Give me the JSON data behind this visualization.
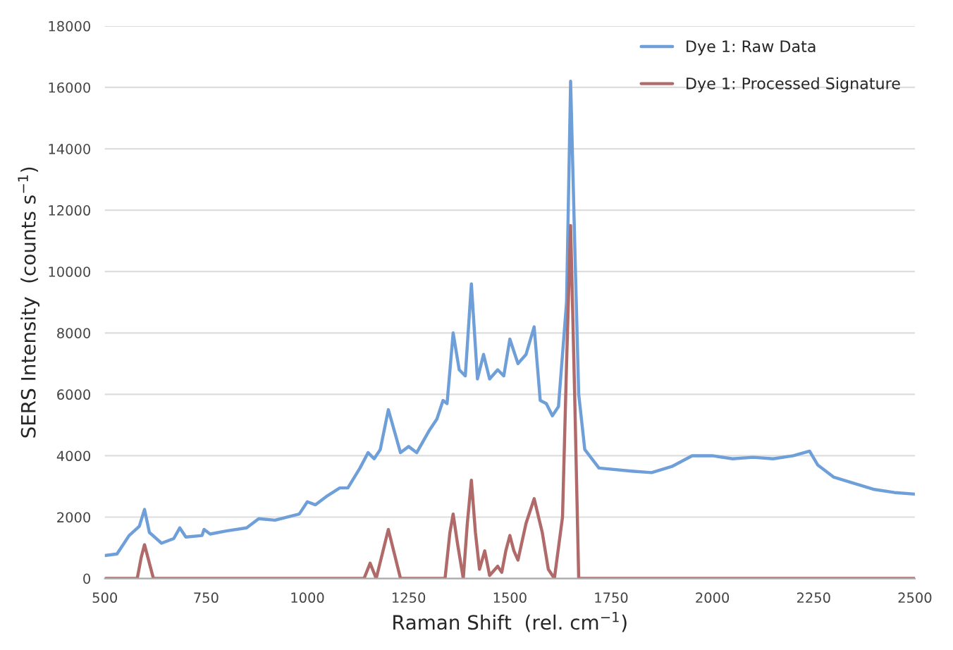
{
  "chart_data": {
    "type": "line",
    "xlabel": "Raman Shift  (rel. cm$^{−1}$)",
    "ylabel": "SERS Intensity  (counts s$^{−1}$)",
    "xlim": [
      500,
      2500
    ],
    "xticks": [
      500,
      750,
      1000,
      1250,
      1500,
      1750,
      2000,
      2250,
      2500
    ],
    "ylim": [
      0,
      18000
    ],
    "yticks": [
      0,
      2000,
      4000,
      6000,
      8000,
      10000,
      12000,
      14000,
      16000,
      18000
    ],
    "grid": "y",
    "legend": "top right",
    "marker": "none",
    "line_style": "solid",
    "series": [
      {
        "name": "Dye 1: Raw Data",
        "color": "#6f9fd8",
        "x": [
          500,
          530,
          560,
          585,
          598,
          610,
          640,
          670,
          685,
          700,
          740,
          745,
          760,
          800,
          850,
          880,
          920,
          980,
          1000,
          1020,
          1050,
          1080,
          1100,
          1130,
          1150,
          1165,
          1180,
          1200,
          1215,
          1230,
          1250,
          1270,
          1300,
          1320,
          1335,
          1345,
          1360,
          1375,
          1390,
          1405,
          1420,
          1435,
          1450,
          1470,
          1485,
          1500,
          1520,
          1540,
          1560,
          1575,
          1590,
          1605,
          1620,
          1640,
          1650,
          1660,
          1670,
          1685,
          1720,
          1800,
          1850,
          1900,
          1950,
          2000,
          2050,
          2100,
          2150,
          2200,
          2240,
          2260,
          2300,
          2350,
          2400,
          2450,
          2500
        ],
        "values": [
          750,
          800,
          1400,
          1700,
          2250,
          1500,
          1150,
          1300,
          1650,
          1350,
          1400,
          1600,
          1450,
          1550,
          1650,
          1950,
          1900,
          2100,
          2500,
          2400,
          2700,
          2950,
          2950,
          3600,
          4100,
          3900,
          4200,
          5500,
          4800,
          4100,
          4300,
          4100,
          4800,
          5200,
          5800,
          5700,
          8000,
          6800,
          6600,
          9600,
          6500,
          7300,
          6500,
          6800,
          6600,
          7800,
          7000,
          7300,
          8200,
          5800,
          5700,
          5300,
          5600,
          9000,
          16200,
          11000,
          6000,
          4200,
          3600,
          3500,
          3450,
          3650,
          4000,
          4000,
          3900,
          3950,
          3900,
          4000,
          4150,
          3700,
          3300,
          3100,
          2900,
          2800,
          2750
        ]
      },
      {
        "name": "Dye 1: Processed Signature",
        "color": "#b06a6a",
        "x": [
          500,
          580,
          590,
          598,
          606,
          620,
          1140,
          1155,
          1170,
          1185,
          1200,
          1215,
          1230,
          1340,
          1352,
          1360,
          1370,
          1385,
          1395,
          1405,
          1415,
          1425,
          1438,
          1450,
          1470,
          1480,
          1490,
          1500,
          1510,
          1520,
          1540,
          1560,
          1580,
          1595,
          1610,
          1630,
          1640,
          1650,
          1660,
          1670,
          2500
        ],
        "values": [
          0,
          0,
          700,
          1100,
          700,
          0,
          0,
          500,
          0,
          800,
          1600,
          800,
          0,
          0,
          1500,
          2100,
          1200,
          0,
          1800,
          3200,
          1500,
          300,
          900,
          100,
          400,
          200,
          900,
          1400,
          900,
          600,
          1800,
          2600,
          1500,
          300,
          0,
          2000,
          7000,
          11500,
          6000,
          0,
          0
        ]
      }
    ]
  }
}
